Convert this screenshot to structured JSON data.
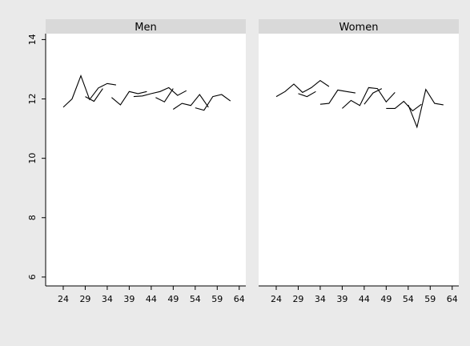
{
  "chart_data": {
    "type": "line",
    "grid": false,
    "panels": [
      {
        "title": "Men",
        "x_ticks": [
          24,
          29,
          34,
          39,
          44,
          49,
          54,
          59,
          64
        ],
        "y_ticks": [
          6,
          8,
          10,
          12,
          14
        ],
        "xlim": [
          20,
          65.5
        ],
        "ylim": [
          5.7,
          14.2
        ],
        "series": [
          {
            "x": [
              24,
              26,
              28,
              30,
              32,
              34,
              36
            ],
            "y": [
              11.72,
              12.0,
              12.78,
              11.98,
              12.37,
              12.52,
              12.47
            ]
          },
          {
            "x": [
              29,
              31,
              33
            ],
            "y": [
              12.08,
              11.92,
              12.35
            ]
          },
          {
            "x": [
              35,
              37,
              39,
              41,
              43
            ],
            "y": [
              12.05,
              11.8,
              12.25,
              12.18,
              12.25
            ]
          },
          {
            "x": [
              40,
              42,
              44,
              46,
              48,
              50,
              52
            ],
            "y": [
              12.08,
              12.1,
              12.18,
              12.25,
              12.38,
              12.12,
              12.28
            ]
          },
          {
            "x": [
              45,
              47,
              49
            ],
            "y": [
              12.05,
              11.9,
              12.35
            ]
          },
          {
            "x": [
              49,
              51,
              53,
              55,
              57
            ],
            "y": [
              11.65,
              11.85,
              11.78,
              12.15,
              11.72
            ]
          },
          {
            "x": [
              54,
              56,
              58,
              60,
              62
            ],
            "y": [
              11.7,
              11.62,
              12.08,
              12.15,
              11.93
            ]
          }
        ]
      },
      {
        "title": "Women",
        "x_ticks": [
          24,
          29,
          34,
          39,
          44,
          49,
          54,
          59,
          64
        ],
        "y_ticks": [
          6,
          8,
          10,
          12,
          14
        ],
        "xlim": [
          20,
          65.5
        ],
        "ylim": [
          5.7,
          14.2
        ],
        "series": [
          {
            "x": [
              24,
              26,
              28,
              30,
              32,
              34,
              36
            ],
            "y": [
              12.08,
              12.25,
              12.5,
              12.22,
              12.38,
              12.62,
              12.42
            ]
          },
          {
            "x": [
              29,
              31,
              33
            ],
            "y": [
              12.18,
              12.08,
              12.25
            ]
          },
          {
            "x": [
              34,
              36,
              38,
              40,
              42
            ],
            "y": [
              11.82,
              11.85,
              12.3,
              12.25,
              12.2
            ]
          },
          {
            "x": [
              39,
              41,
              43,
              45,
              47,
              49,
              51
            ],
            "y": [
              11.68,
              11.95,
              11.78,
              12.38,
              12.35,
              11.9,
              12.22
            ]
          },
          {
            "x": [
              44,
              46,
              48
            ],
            "y": [
              11.82,
              12.2,
              12.35
            ]
          },
          {
            "x": [
              49,
              51,
              53,
              55,
              57
            ],
            "y": [
              11.68,
              11.68,
              11.92,
              11.6,
              11.82
            ]
          },
          {
            "x": [
              54,
              56,
              58,
              60,
              62
            ],
            "y": [
              11.8,
              11.05,
              12.32,
              11.85,
              11.8
            ]
          }
        ]
      }
    ]
  },
  "colors": {
    "background": "#eaeaea",
    "plot_region": "#ffffff",
    "strip": "#d9d9d9",
    "line": "#000000"
  }
}
